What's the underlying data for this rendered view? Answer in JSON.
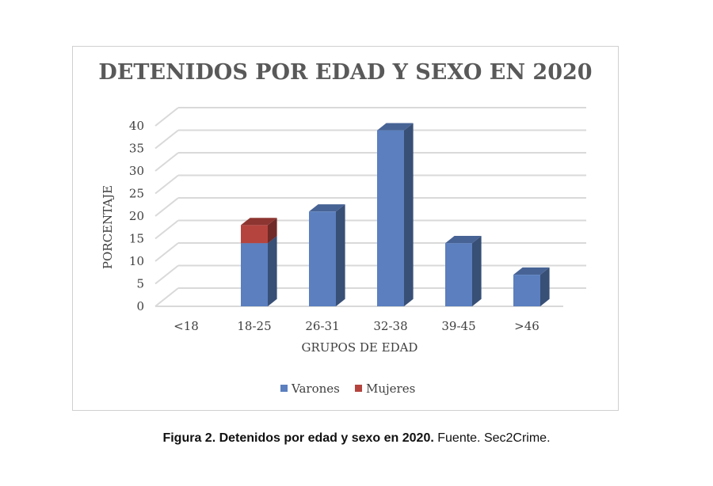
{
  "chart_data": {
    "type": "bar",
    "title": "DETENIDOS POR EDAD Y SEXO EN 2020",
    "xlabel": "GRUPOS DE EDAD",
    "ylabel": "PORCENTAJE",
    "categories": [
      "<18",
      "18-25",
      "26-31",
      "32-38",
      "39-45",
      ">46"
    ],
    "stacked": true,
    "three_d": true,
    "ylim": [
      0,
      40
    ],
    "yticks": [
      0,
      5,
      10,
      15,
      20,
      25,
      30,
      35,
      40
    ],
    "grid": true,
    "legend_position": "bottom",
    "series": [
      {
        "name": "Varones",
        "color": "#5b7fbf",
        "values": [
          0,
          14,
          21,
          39,
          14,
          7
        ]
      },
      {
        "name": "Mujeres",
        "color": "#b5443f",
        "values": [
          0,
          4,
          0,
          0,
          0,
          0
        ]
      }
    ]
  },
  "caption": {
    "bold": "Figura 2. Detenidos por edad y sexo en 2020.",
    "normal": " Fuente. Sec2Crime."
  }
}
